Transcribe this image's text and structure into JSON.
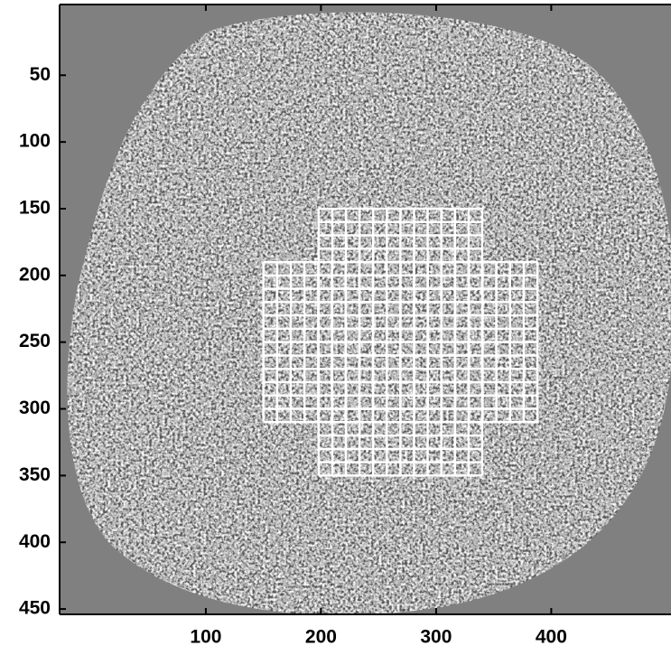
{
  "chart_data": {
    "type": "image",
    "xlim": [
      -27,
      504
    ],
    "ylim": [
      -3,
      454
    ],
    "y_reversed": true,
    "xticks": [
      100,
      200,
      300,
      400
    ],
    "yticks": [
      50,
      100,
      150,
      200,
      250,
      300,
      350,
      400,
      450
    ],
    "overlay_color": "#ffffff",
    "overlay_grids": [
      {
        "xlim": [
          198,
          340
        ],
        "ylim": [
          150,
          350
        ],
        "columns": 12,
        "rows": 20
      },
      {
        "xlim": [
          150,
          388
        ],
        "ylim": [
          190,
          310
        ],
        "columns": 20,
        "rows": 12
      }
    ]
  }
}
